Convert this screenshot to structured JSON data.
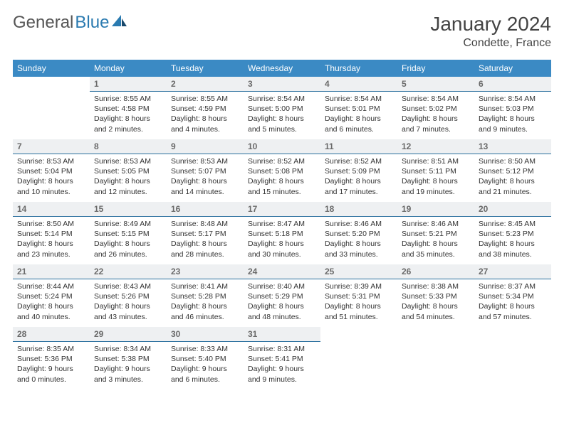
{
  "brand": {
    "part1": "General",
    "part2": "Blue"
  },
  "title": "January 2024",
  "location": "Condette, France",
  "colors": {
    "header_bg": "#3b8ac4",
    "header_fg": "#ffffff",
    "daynum_bg": "#eef0f2",
    "daynum_fg": "#6a6a6a",
    "rule": "#2a6f9e",
    "text": "#333333",
    "logo_gray": "#555555",
    "logo_blue": "#2a7ab0"
  },
  "weekdays": [
    "Sunday",
    "Monday",
    "Tuesday",
    "Wednesday",
    "Thursday",
    "Friday",
    "Saturday"
  ],
  "weeks": [
    [
      {
        "n": "",
        "sunrise": "",
        "sunset": "",
        "daylight": ""
      },
      {
        "n": "1",
        "sunrise": "8:55 AM",
        "sunset": "4:58 PM",
        "daylight": "8 hours and 2 minutes."
      },
      {
        "n": "2",
        "sunrise": "8:55 AM",
        "sunset": "4:59 PM",
        "daylight": "8 hours and 4 minutes."
      },
      {
        "n": "3",
        "sunrise": "8:54 AM",
        "sunset": "5:00 PM",
        "daylight": "8 hours and 5 minutes."
      },
      {
        "n": "4",
        "sunrise": "8:54 AM",
        "sunset": "5:01 PM",
        "daylight": "8 hours and 6 minutes."
      },
      {
        "n": "5",
        "sunrise": "8:54 AM",
        "sunset": "5:02 PM",
        "daylight": "8 hours and 7 minutes."
      },
      {
        "n": "6",
        "sunrise": "8:54 AM",
        "sunset": "5:03 PM",
        "daylight": "8 hours and 9 minutes."
      }
    ],
    [
      {
        "n": "7",
        "sunrise": "8:53 AM",
        "sunset": "5:04 PM",
        "daylight": "8 hours and 10 minutes."
      },
      {
        "n": "8",
        "sunrise": "8:53 AM",
        "sunset": "5:05 PM",
        "daylight": "8 hours and 12 minutes."
      },
      {
        "n": "9",
        "sunrise": "8:53 AM",
        "sunset": "5:07 PM",
        "daylight": "8 hours and 14 minutes."
      },
      {
        "n": "10",
        "sunrise": "8:52 AM",
        "sunset": "5:08 PM",
        "daylight": "8 hours and 15 minutes."
      },
      {
        "n": "11",
        "sunrise": "8:52 AM",
        "sunset": "5:09 PM",
        "daylight": "8 hours and 17 minutes."
      },
      {
        "n": "12",
        "sunrise": "8:51 AM",
        "sunset": "5:11 PM",
        "daylight": "8 hours and 19 minutes."
      },
      {
        "n": "13",
        "sunrise": "8:50 AM",
        "sunset": "5:12 PM",
        "daylight": "8 hours and 21 minutes."
      }
    ],
    [
      {
        "n": "14",
        "sunrise": "8:50 AM",
        "sunset": "5:14 PM",
        "daylight": "8 hours and 23 minutes."
      },
      {
        "n": "15",
        "sunrise": "8:49 AM",
        "sunset": "5:15 PM",
        "daylight": "8 hours and 26 minutes."
      },
      {
        "n": "16",
        "sunrise": "8:48 AM",
        "sunset": "5:17 PM",
        "daylight": "8 hours and 28 minutes."
      },
      {
        "n": "17",
        "sunrise": "8:47 AM",
        "sunset": "5:18 PM",
        "daylight": "8 hours and 30 minutes."
      },
      {
        "n": "18",
        "sunrise": "8:46 AM",
        "sunset": "5:20 PM",
        "daylight": "8 hours and 33 minutes."
      },
      {
        "n": "19",
        "sunrise": "8:46 AM",
        "sunset": "5:21 PM",
        "daylight": "8 hours and 35 minutes."
      },
      {
        "n": "20",
        "sunrise": "8:45 AM",
        "sunset": "5:23 PM",
        "daylight": "8 hours and 38 minutes."
      }
    ],
    [
      {
        "n": "21",
        "sunrise": "8:44 AM",
        "sunset": "5:24 PM",
        "daylight": "8 hours and 40 minutes."
      },
      {
        "n": "22",
        "sunrise": "8:43 AM",
        "sunset": "5:26 PM",
        "daylight": "8 hours and 43 minutes."
      },
      {
        "n": "23",
        "sunrise": "8:41 AM",
        "sunset": "5:28 PM",
        "daylight": "8 hours and 46 minutes."
      },
      {
        "n": "24",
        "sunrise": "8:40 AM",
        "sunset": "5:29 PM",
        "daylight": "8 hours and 48 minutes."
      },
      {
        "n": "25",
        "sunrise": "8:39 AM",
        "sunset": "5:31 PM",
        "daylight": "8 hours and 51 minutes."
      },
      {
        "n": "26",
        "sunrise": "8:38 AM",
        "sunset": "5:33 PM",
        "daylight": "8 hours and 54 minutes."
      },
      {
        "n": "27",
        "sunrise": "8:37 AM",
        "sunset": "5:34 PM",
        "daylight": "8 hours and 57 minutes."
      }
    ],
    [
      {
        "n": "28",
        "sunrise": "8:35 AM",
        "sunset": "5:36 PM",
        "daylight": "9 hours and 0 minutes."
      },
      {
        "n": "29",
        "sunrise": "8:34 AM",
        "sunset": "5:38 PM",
        "daylight": "9 hours and 3 minutes."
      },
      {
        "n": "30",
        "sunrise": "8:33 AM",
        "sunset": "5:40 PM",
        "daylight": "9 hours and 6 minutes."
      },
      {
        "n": "31",
        "sunrise": "8:31 AM",
        "sunset": "5:41 PM",
        "daylight": "9 hours and 9 minutes."
      },
      {
        "n": "",
        "sunrise": "",
        "sunset": "",
        "daylight": ""
      },
      {
        "n": "",
        "sunrise": "",
        "sunset": "",
        "daylight": ""
      },
      {
        "n": "",
        "sunrise": "",
        "sunset": "",
        "daylight": ""
      }
    ]
  ],
  "labels": {
    "sunrise": "Sunrise:",
    "sunset": "Sunset:",
    "daylight": "Daylight:"
  }
}
